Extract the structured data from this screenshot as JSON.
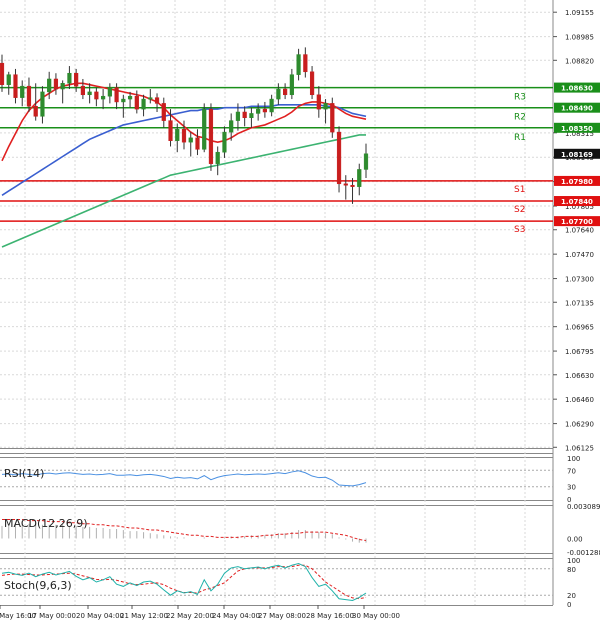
{
  "colors": {
    "up_candle": "#2e8b2e",
    "down_candle": "#c81e1e",
    "ma_red": "#e02020",
    "ma_blue": "#3a5fd0",
    "ma_green": "#3cb371",
    "resistance": "#1a8f1a",
    "support": "#e01010",
    "grid": "#d9d9d9",
    "rsi_line": "#4a90e2",
    "macd_signal": "#e02020",
    "macd_hist": "#b0b0b0",
    "stoch_main": "#20b2aa",
    "stoch_signal": "#e02020"
  },
  "price_axis": {
    "ticks": [
      "1.09155",
      "1.08985",
      "1.08820",
      "1.08315",
      "1.08145",
      "1.07975",
      "1.07805",
      "1.07640",
      "1.07470",
      "1.07300",
      "1.07135",
      "1.06965",
      "1.06795",
      "1.06630",
      "1.06460",
      "1.06290",
      "1.06125"
    ]
  },
  "levels": [
    {
      "name": "R3",
      "value": "1.08630",
      "kind": "resistance"
    },
    {
      "name": "R2",
      "value": "1.08490",
      "kind": "resistance"
    },
    {
      "name": "R1",
      "value": "1.08350",
      "kind": "resistance"
    },
    {
      "name": "S1",
      "value": "1.07980",
      "kind": "support"
    },
    {
      "name": "S2",
      "value": "1.07840",
      "kind": "support"
    },
    {
      "name": "S3",
      "value": "1.07700",
      "kind": "support"
    }
  ],
  "current_price": "1.08169",
  "x_axis": {
    "labels": [
      "16 May 16:00",
      "17 May 00:00",
      "20 May 04:00",
      "21 May 12:00",
      "22 May 20:00",
      "24 May 04:00",
      "27 May 08:00",
      "28 May 16:00",
      "30 May 00:00"
    ]
  },
  "rsi": {
    "title": "RSI(14)",
    "ticks": [
      "100",
      "70",
      "30",
      "0"
    ]
  },
  "macd": {
    "title": "MACD(12,26,9)",
    "ticks": [
      "0.003089",
      "0.00",
      "-0.001288"
    ]
  },
  "stoch": {
    "title": "Stoch(9,6,3)",
    "ticks": [
      "100",
      "80",
      "20",
      "0"
    ]
  },
  "chart_data": {
    "type": "candlestick",
    "ylim": [
      1.0612,
      1.0924
    ],
    "candles": [
      {
        "o": 1.088,
        "h": 1.0886,
        "l": 1.086,
        "c": 1.0865
      },
      {
        "o": 1.0865,
        "h": 1.0874,
        "l": 1.0858,
        "c": 1.0872
      },
      {
        "o": 1.0872,
        "h": 1.0876,
        "l": 1.0852,
        "c": 1.0856
      },
      {
        "o": 1.0856,
        "h": 1.0868,
        "l": 1.085,
        "c": 1.0864
      },
      {
        "o": 1.0864,
        "h": 1.087,
        "l": 1.0846,
        "c": 1.085
      },
      {
        "o": 1.085,
        "h": 1.0866,
        "l": 1.084,
        "c": 1.0843
      },
      {
        "o": 1.0843,
        "h": 1.0864,
        "l": 1.0838,
        "c": 1.086
      },
      {
        "o": 1.086,
        "h": 1.0874,
        "l": 1.0855,
        "c": 1.0869
      },
      {
        "o": 1.0869,
        "h": 1.0873,
        "l": 1.0858,
        "c": 1.0862
      },
      {
        "o": 1.0862,
        "h": 1.0868,
        "l": 1.0852,
        "c": 1.0866
      },
      {
        "o": 1.0866,
        "h": 1.0878,
        "l": 1.0862,
        "c": 1.0873
      },
      {
        "o": 1.0873,
        "h": 1.0876,
        "l": 1.086,
        "c": 1.0864
      },
      {
        "o": 1.0864,
        "h": 1.0869,
        "l": 1.0855,
        "c": 1.0858
      },
      {
        "o": 1.0858,
        "h": 1.0866,
        "l": 1.0852,
        "c": 1.086
      },
      {
        "o": 1.086,
        "h": 1.0863,
        "l": 1.085,
        "c": 1.0855
      },
      {
        "o": 1.0855,
        "h": 1.0862,
        "l": 1.0848,
        "c": 1.0857
      },
      {
        "o": 1.0857,
        "h": 1.0866,
        "l": 1.0852,
        "c": 1.0863
      },
      {
        "o": 1.0863,
        "h": 1.0866,
        "l": 1.0848,
        "c": 1.0853
      },
      {
        "o": 1.0853,
        "h": 1.0858,
        "l": 1.0842,
        "c": 1.0855
      },
      {
        "o": 1.0855,
        "h": 1.086,
        "l": 1.0849,
        "c": 1.0857
      },
      {
        "o": 1.0857,
        "h": 1.0861,
        "l": 1.0845,
        "c": 1.0848
      },
      {
        "o": 1.0848,
        "h": 1.0858,
        "l": 1.0843,
        "c": 1.0855
      },
      {
        "o": 1.0855,
        "h": 1.0862,
        "l": 1.0852,
        "c": 1.0856
      },
      {
        "o": 1.0856,
        "h": 1.0859,
        "l": 1.0846,
        "c": 1.0852
      },
      {
        "o": 1.0852,
        "h": 1.0856,
        "l": 1.0835,
        "c": 1.084
      },
      {
        "o": 1.084,
        "h": 1.0848,
        "l": 1.0822,
        "c": 1.0826
      },
      {
        "o": 1.0826,
        "h": 1.0838,
        "l": 1.0818,
        "c": 1.0834
      },
      {
        "o": 1.0834,
        "h": 1.084,
        "l": 1.082,
        "c": 1.0825
      },
      {
        "o": 1.0825,
        "h": 1.0832,
        "l": 1.0815,
        "c": 1.0828
      },
      {
        "o": 1.0828,
        "h": 1.0834,
        "l": 1.0816,
        "c": 1.082
      },
      {
        "o": 1.082,
        "h": 1.0852,
        "l": 1.0818,
        "c": 1.0848
      },
      {
        "o": 1.0848,
        "h": 1.0852,
        "l": 1.0805,
        "c": 1.081
      },
      {
        "o": 1.081,
        "h": 1.0822,
        "l": 1.0802,
        "c": 1.0818
      },
      {
        "o": 1.0818,
        "h": 1.0836,
        "l": 1.0814,
        "c": 1.0832
      },
      {
        "o": 1.0832,
        "h": 1.0845,
        "l": 1.0826,
        "c": 1.084
      },
      {
        "o": 1.084,
        "h": 1.0852,
        "l": 1.0833,
        "c": 1.0846
      },
      {
        "o": 1.0846,
        "h": 1.085,
        "l": 1.0836,
        "c": 1.0842
      },
      {
        "o": 1.0842,
        "h": 1.0849,
        "l": 1.0835,
        "c": 1.0845
      },
      {
        "o": 1.0845,
        "h": 1.0852,
        "l": 1.084,
        "c": 1.0848
      },
      {
        "o": 1.0848,
        "h": 1.0853,
        "l": 1.0842,
        "c": 1.0846
      },
      {
        "o": 1.0846,
        "h": 1.0858,
        "l": 1.0843,
        "c": 1.0855
      },
      {
        "o": 1.0855,
        "h": 1.0866,
        "l": 1.0851,
        "c": 1.0862
      },
      {
        "o": 1.0862,
        "h": 1.0866,
        "l": 1.0855,
        "c": 1.0858
      },
      {
        "o": 1.0858,
        "h": 1.0876,
        "l": 1.0855,
        "c": 1.0872
      },
      {
        "o": 1.0872,
        "h": 1.089,
        "l": 1.0868,
        "c": 1.0886
      },
      {
        "o": 1.0886,
        "h": 1.0891,
        "l": 1.087,
        "c": 1.0874
      },
      {
        "o": 1.0874,
        "h": 1.0878,
        "l": 1.0855,
        "c": 1.0858
      },
      {
        "o": 1.0858,
        "h": 1.0864,
        "l": 1.0842,
        "c": 1.0848
      },
      {
        "o": 1.0848,
        "h": 1.0855,
        "l": 1.0838,
        "c": 1.0852
      },
      {
        "o": 1.0852,
        "h": 1.0856,
        "l": 1.0828,
        "c": 1.0832
      },
      {
        "o": 1.0832,
        "h": 1.0836,
        "l": 1.079,
        "c": 1.0796
      },
      {
        "o": 1.0796,
        "h": 1.0802,
        "l": 1.0785,
        "c": 1.0795
      },
      {
        "o": 1.0795,
        "h": 1.08,
        "l": 1.0782,
        "c": 1.0794
      },
      {
        "o": 1.0794,
        "h": 1.081,
        "l": 1.0788,
        "c": 1.0806
      },
      {
        "o": 1.0806,
        "h": 1.0824,
        "l": 1.08,
        "c": 1.08169
      }
    ],
    "ma_red": [
      1.0812,
      1.0822,
      1.0831,
      1.084,
      1.0847,
      1.0852,
      1.0856,
      1.0859,
      1.0862,
      1.0864,
      1.0865,
      1.0866,
      1.0866,
      1.0865,
      1.0864,
      1.0863,
      1.0862,
      1.0861,
      1.086,
      1.0859,
      1.0858,
      1.0857,
      1.0855,
      1.0853,
      1.0849,
      1.0844,
      1.084,
      1.0836,
      1.0832,
      1.0829,
      1.0828,
      1.0826,
      1.0825,
      1.0826,
      1.0828,
      1.0831,
      1.0833,
      1.0835,
      1.0836,
      1.0837,
      1.0839,
      1.0841,
      1.0843,
      1.0846,
      1.085,
      1.0852,
      1.0853,
      1.0853,
      1.0852,
      1.0851,
      1.0848,
      1.0845,
      1.0843,
      1.0842,
      1.0841
    ],
    "ma_blue": [
      1.0788,
      1.0791,
      1.0794,
      1.0797,
      1.08,
      1.0803,
      1.0806,
      1.0809,
      1.0812,
      1.0815,
      1.0818,
      1.0821,
      1.0824,
      1.0827,
      1.0829,
      1.0831,
      1.0833,
      1.0835,
      1.0837,
      1.0838,
      1.0839,
      1.084,
      1.0841,
      1.0842,
      1.0843,
      1.0844,
      1.0845,
      1.0846,
      1.0847,
      1.0847,
      1.0848,
      1.0848,
      1.0848,
      1.0849,
      1.0849,
      1.0849,
      1.0849,
      1.085,
      1.085,
      1.085,
      1.085,
      1.0851,
      1.0851,
      1.0851,
      1.0851,
      1.0851,
      1.0851,
      1.0851,
      1.085,
      1.085,
      1.0849,
      1.0847,
      1.0845,
      1.0844,
      1.0843
    ],
    "ma_green": [
      1.0752,
      1.0754,
      1.0756,
      1.0758,
      1.076,
      1.0762,
      1.0764,
      1.0766,
      1.0768,
      1.077,
      1.0772,
      1.0774,
      1.0776,
      1.0778,
      1.078,
      1.0782,
      1.0784,
      1.0786,
      1.0788,
      1.079,
      1.0792,
      1.0794,
      1.0796,
      1.0798,
      1.08,
      1.0802,
      1.0803,
      1.0804,
      1.0805,
      1.0806,
      1.0807,
      1.0808,
      1.0809,
      1.081,
      1.0811,
      1.0812,
      1.0813,
      1.0814,
      1.0815,
      1.0816,
      1.0817,
      1.0818,
      1.0819,
      1.082,
      1.0821,
      1.0822,
      1.0823,
      1.0824,
      1.0825,
      1.0826,
      1.0827,
      1.0828,
      1.0829,
      1.083,
      1.083
    ],
    "rsi": [
      60,
      61,
      59,
      62,
      60,
      58,
      62,
      63,
      61,
      63,
      64,
      62,
      60,
      61,
      59,
      60,
      62,
      58,
      58,
      59,
      57,
      59,
      60,
      58,
      55,
      50,
      53,
      51,
      52,
      49,
      57,
      47,
      53,
      57,
      59,
      61,
      59,
      60,
      61,
      60,
      62,
      64,
      62,
      66,
      69,
      64,
      56,
      52,
      53,
      46,
      34,
      33,
      32,
      35,
      40
    ],
    "macd_hist": [
      0.0012,
      0.0013,
      0.0013,
      0.0014,
      0.0014,
      0.0014,
      0.0013,
      0.0013,
      0.0013,
      0.0013,
      0.0012,
      0.0012,
      0.0011,
      0.0011,
      0.001,
      0.001,
      0.0009,
      0.0009,
      0.0008,
      0.0007,
      0.0007,
      0.0006,
      0.0005,
      0.0004,
      0.0003,
      0.0002,
      0.0001,
      0.0001,
      0.0,
      0.0,
      0.0001,
      0.0,
      0.0,
      0.0001,
      0.0002,
      0.0002,
      0.0002,
      0.0003,
      0.0003,
      0.0003,
      0.0004,
      0.0005,
      0.0005,
      0.0006,
      0.0008,
      0.0008,
      0.0007,
      0.0006,
      0.0005,
      0.0004,
      0.0001,
      -0.0001,
      -0.0003,
      -0.0004,
      -0.0004
    ],
    "macd_signal": [
      0.0018,
      0.0018,
      0.0018,
      0.0018,
      0.0017,
      0.0017,
      0.0017,
      0.0016,
      0.0016,
      0.0016,
      0.0015,
      0.0015,
      0.0014,
      0.0014,
      0.0013,
      0.0013,
      0.0012,
      0.0012,
      0.0011,
      0.001,
      0.001,
      0.0009,
      0.0008,
      0.0008,
      0.0007,
      0.0006,
      0.0005,
      0.0004,
      0.0003,
      0.0003,
      0.0002,
      0.0002,
      0.0001,
      0.0001,
      0.0001,
      0.0001,
      0.0002,
      0.0002,
      0.0002,
      0.0003,
      0.0003,
      0.0004,
      0.0004,
      0.0005,
      0.0005,
      0.0006,
      0.0006,
      0.0006,
      0.0006,
      0.0005,
      0.0004,
      0.0003,
      0.0001,
      -0.0001,
      -0.0002
    ],
    "stoch_main": [
      70,
      72,
      68,
      65,
      70,
      62,
      68,
      72,
      66,
      70,
      74,
      63,
      55,
      60,
      50,
      55,
      62,
      45,
      40,
      48,
      42,
      50,
      52,
      45,
      32,
      20,
      30,
      25,
      28,
      22,
      55,
      30,
      45,
      70,
      82,
      85,
      80,
      82,
      84,
      80,
      85,
      88,
      82,
      88,
      92,
      85,
      60,
      40,
      45,
      30,
      12,
      10,
      8,
      15,
      25
    ],
    "stoch_signal": [
      65,
      67,
      68,
      68,
      67,
      66,
      66,
      67,
      68,
      69,
      70,
      68,
      64,
      60,
      56,
      55,
      56,
      54,
      50,
      46,
      44,
      45,
      47,
      48,
      44,
      36,
      30,
      26,
      26,
      25,
      32,
      36,
      42,
      48,
      62,
      75,
      80,
      82,
      82,
      82,
      83,
      85,
      85,
      85,
      88,
      88,
      80,
      65,
      50,
      40,
      30,
      20,
      14,
      12,
      15
    ]
  }
}
